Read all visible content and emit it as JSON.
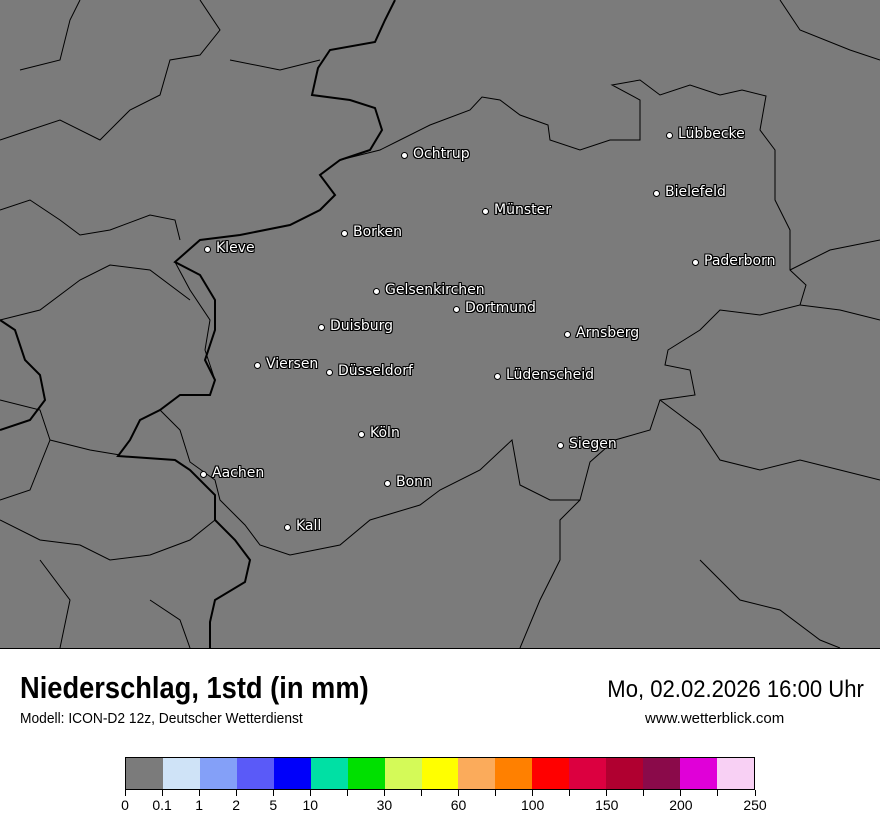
{
  "map": {
    "background_color": "#7b7b7b",
    "cities": [
      {
        "name": "Lübbecke"
      },
      {
        "name": "Ochtrup"
      },
      {
        "name": "Bielefeld"
      },
      {
        "name": "Münster"
      },
      {
        "name": "Borken"
      },
      {
        "name": "Kleve"
      },
      {
        "name": "Paderborn"
      },
      {
        "name": "Gelsenkirchen"
      },
      {
        "name": "Dortmund"
      },
      {
        "name": "Duisburg"
      },
      {
        "name": "Arnsberg"
      },
      {
        "name": "Viersen"
      },
      {
        "name": "Düsseldorf"
      },
      {
        "name": "Lüdenscheid"
      },
      {
        "name": "Köln"
      },
      {
        "name": "Siegen"
      },
      {
        "name": "Aachen"
      },
      {
        "name": "Bonn"
      },
      {
        "name": "Kall"
      }
    ]
  },
  "header": {
    "title": "Niederschlag, 1std (in mm)",
    "subtitle": "Modell: ICON-D2 12z, Deutscher Wetterdienst",
    "datetime": "Mo, 02.02.2026 16:00 Uhr",
    "website": "www.wetterblick.com"
  },
  "legend": {
    "colors": [
      "#7b7b7b",
      "#cfe3f7",
      "#84a0f8",
      "#5a5af8",
      "#0000fa",
      "#00e0a4",
      "#00e000",
      "#d4fa58",
      "#ffff00",
      "#fbab5b",
      "#ff8000",
      "#ff0000",
      "#dc0040",
      "#b00030",
      "#8a0a4a",
      "#e000d8",
      "#f8d0f4"
    ],
    "tick_labels": [
      "0",
      "0.1",
      "1",
      "2",
      "5",
      "10",
      "",
      "30",
      "",
      "60",
      "",
      "100",
      "",
      "150",
      "",
      "200",
      "",
      "250"
    ]
  }
}
